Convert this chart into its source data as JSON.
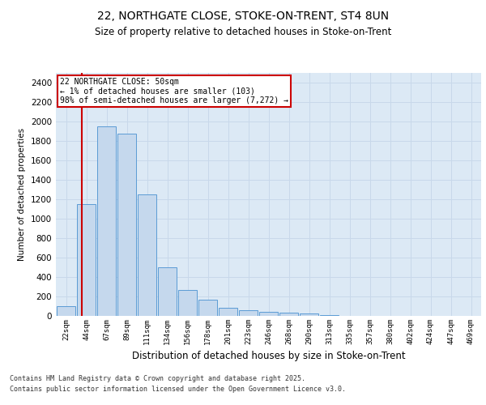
{
  "title_line1": "22, NORTHGATE CLOSE, STOKE-ON-TRENT, ST4 8UN",
  "title_line2": "Size of property relative to detached houses in Stoke-on-Trent",
  "xlabel": "Distribution of detached houses by size in Stoke-on-Trent",
  "ylabel": "Number of detached properties",
  "categories": [
    "22sqm",
    "44sqm",
    "67sqm",
    "89sqm",
    "111sqm",
    "134sqm",
    "156sqm",
    "178sqm",
    "201sqm",
    "223sqm",
    "246sqm",
    "268sqm",
    "290sqm",
    "313sqm",
    "335sqm",
    "357sqm",
    "380sqm",
    "402sqm",
    "424sqm",
    "447sqm",
    "469sqm"
  ],
  "values": [
    103,
    1150,
    1950,
    1875,
    1250,
    500,
    265,
    170,
    85,
    55,
    45,
    30,
    25,
    8,
    4,
    2,
    2,
    1,
    1,
    1,
    0
  ],
  "bar_color": "#c5d8ed",
  "bar_edge_color": "#5b9bd5",
  "grid_color": "#c8d8ea",
  "bg_color": "#dce9f5",
  "vline_color": "#cc0000",
  "annotation_text": "22 NORTHGATE CLOSE: 50sqm\n← 1% of detached houses are smaller (103)\n98% of semi-detached houses are larger (7,272) →",
  "annotation_box_color": "#ffffff",
  "annotation_box_edge": "#cc0000",
  "footer_line1": "Contains HM Land Registry data © Crown copyright and database right 2025.",
  "footer_line2": "Contains public sector information licensed under the Open Government Licence v3.0.",
  "ylim": [
    0,
    2500
  ],
  "yticks": [
    0,
    200,
    400,
    600,
    800,
    1000,
    1200,
    1400,
    1600,
    1800,
    2000,
    2200,
    2400
  ]
}
